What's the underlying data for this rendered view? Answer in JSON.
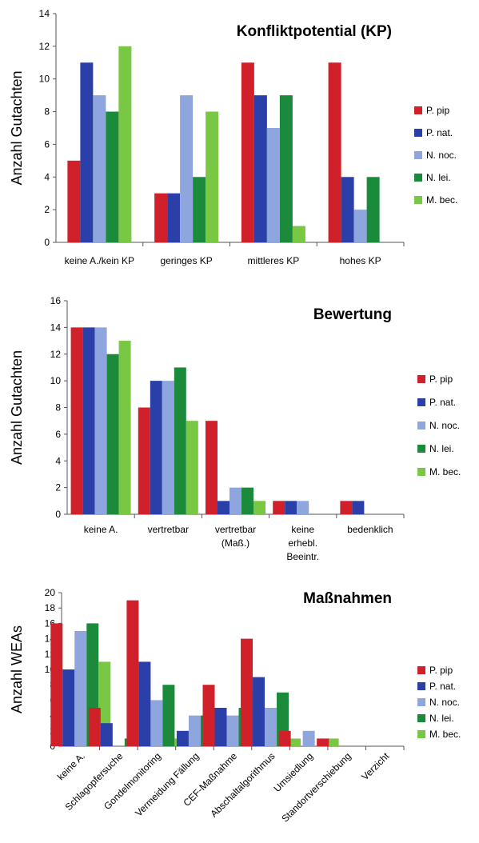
{
  "colors": {
    "p_pip": "#d0202a",
    "p_nat": "#2a40a8",
    "n_noc": "#8ea6dd",
    "n_lei": "#1b8a3b",
    "m_bec": "#79c844"
  },
  "chart_data": [
    {
      "type": "bar",
      "title": "Konfliktpotential (KP)",
      "xlabel": "",
      "ylabel": "Anzahl Gutachten",
      "ylim": [
        0,
        14
      ],
      "yticks": [
        0,
        2,
        4,
        6,
        8,
        10,
        12,
        14
      ],
      "legend_position": "right",
      "categories": [
        "keine A./kein KP",
        "geringes KP",
        "mittleres KP",
        "hohes KP"
      ],
      "series": [
        {
          "name": "P. pip",
          "values": [
            5,
            3,
            11,
            11
          ]
        },
        {
          "name": "P. nat.",
          "values": [
            11,
            3,
            9,
            4
          ]
        },
        {
          "name": "N. noc.",
          "values": [
            9,
            9,
            7,
            2
          ]
        },
        {
          "name": "N. lei.",
          "values": [
            8,
            4,
            9,
            4
          ]
        },
        {
          "name": "M. bec.",
          "values": [
            12,
            8,
            1,
            0
          ]
        }
      ]
    },
    {
      "type": "bar",
      "title": "Bewertung",
      "xlabel": "",
      "ylabel": "Anzahl Gutachten",
      "ylim": [
        0,
        16
      ],
      "yticks": [
        0,
        2,
        4,
        6,
        8,
        10,
        12,
        14,
        16
      ],
      "legend_position": "right",
      "categories": [
        "keine A.",
        "vertretbar",
        "vertretbar (Maß.)",
        "keine erhebl. Beeintr.",
        "bedenklich"
      ],
      "series": [
        {
          "name": "P. pip",
          "values": [
            14,
            8,
            7,
            1,
            1
          ]
        },
        {
          "name": "P. nat.",
          "values": [
            14,
            10,
            1,
            1,
            1
          ]
        },
        {
          "name": "N. noc.",
          "values": [
            14,
            10,
            2,
            1,
            0
          ]
        },
        {
          "name": "N. lei.",
          "values": [
            12,
            11,
            2,
            0,
            0
          ]
        },
        {
          "name": "M. bec.",
          "values": [
            13,
            7,
            1,
            0,
            0
          ]
        }
      ]
    },
    {
      "type": "bar",
      "title": "Maßnahmen",
      "xlabel": "",
      "ylabel": "Anzahl WEAs",
      "ylim": [
        0,
        20
      ],
      "yticks": [
        0,
        2,
        4,
        6,
        8,
        10,
        12,
        14,
        16,
        18,
        20
      ],
      "legend_position": "right",
      "categories": [
        "keine A.",
        "Schlagopfersuche",
        "Gondelmonitoring",
        "Vermeidung Fällung",
        "CEF-Maßnahme",
        "Abschaltalgorithmus",
        "Umsiedlung",
        "Standortverschiebung",
        "Verzicht"
      ],
      "series": [
        {
          "name": "P. pip",
          "values": [
            16,
            5,
            19,
            0,
            8,
            14,
            2,
            1,
            0
          ]
        },
        {
          "name": "P. nat.",
          "values": [
            10,
            3,
            11,
            2,
            5,
            9,
            0,
            0,
            0
          ]
        },
        {
          "name": "N. noc.",
          "values": [
            15,
            0,
            6,
            4,
            4,
            5,
            2,
            0,
            0
          ]
        },
        {
          "name": "N. lei.",
          "values": [
            16,
            1,
            8,
            4,
            5,
            7,
            0,
            0,
            0
          ]
        },
        {
          "name": "M. bec.",
          "values": [
            11,
            0,
            1,
            4,
            7,
            1,
            1,
            0,
            0
          ]
        }
      ]
    }
  ]
}
